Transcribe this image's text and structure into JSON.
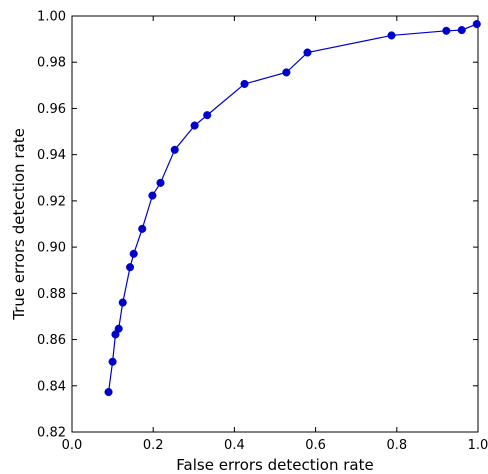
{
  "chart_data": {
    "type": "line",
    "title": "",
    "xlabel": "False errors detection rate",
    "ylabel": "True errors detection rate",
    "xlim": [
      0.0,
      1.0
    ],
    "ylim": [
      0.82,
      1.0
    ],
    "xticks": [
      "0.0",
      "0.2",
      "0.4",
      "0.6",
      "0.8",
      "1.0"
    ],
    "yticks": [
      "0.82",
      "0.84",
      "0.86",
      "0.88",
      "0.90",
      "0.92",
      "0.94",
      "0.96",
      "0.98",
      "1.00"
    ],
    "grid": false,
    "series": [
      {
        "color": "#0000cc",
        "marker": "circle",
        "points": [
          {
            "x": 0.09,
            "y": 0.8373
          },
          {
            "x": 0.1,
            "y": 0.8504
          },
          {
            "x": 0.107,
            "y": 0.8622
          },
          {
            "x": 0.115,
            "y": 0.8647
          },
          {
            "x": 0.125,
            "y": 0.876
          },
          {
            "x": 0.143,
            "y": 0.8913
          },
          {
            "x": 0.152,
            "y": 0.8971
          },
          {
            "x": 0.173,
            "y": 0.9079
          },
          {
            "x": 0.198,
            "y": 0.9223
          },
          {
            "x": 0.218,
            "y": 0.9278
          },
          {
            "x": 0.253,
            "y": 0.9421
          },
          {
            "x": 0.302,
            "y": 0.9526
          },
          {
            "x": 0.333,
            "y": 0.9571
          },
          {
            "x": 0.425,
            "y": 0.9706
          },
          {
            "x": 0.528,
            "y": 0.9756
          },
          {
            "x": 0.58,
            "y": 0.9842
          },
          {
            "x": 0.787,
            "y": 0.9916
          },
          {
            "x": 0.922,
            "y": 0.9936
          },
          {
            "x": 0.96,
            "y": 0.9939
          },
          {
            "x": 0.997,
            "y": 0.9965
          }
        ]
      }
    ]
  }
}
